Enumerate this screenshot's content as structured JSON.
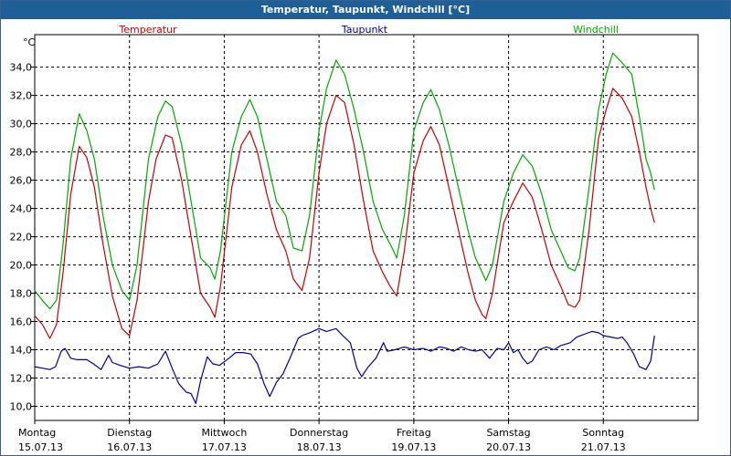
{
  "window": {
    "title": "Temperatur, Taupunkt, Windchill [°C]"
  },
  "chart_data": {
    "type": "line",
    "title": "Temperatur, Taupunkt, Windchill [°C]",
    "ylabel": "°C",
    "ylim": [
      9.0,
      36.3
    ],
    "xlim": [
      0,
      7
    ],
    "yticks": [
      10,
      12,
      14,
      16,
      18,
      20,
      22,
      24,
      26,
      28,
      30,
      32,
      34
    ],
    "ytick_labels": [
      "10,0",
      "12,0",
      "14,0",
      "16,0",
      "18,0",
      "20,0",
      "22,0",
      "24,0",
      "26,0",
      "28,0",
      "30,0",
      "32,0",
      "34,0"
    ],
    "x_days": [
      {
        "day": "Montag",
        "date": "15.07.13"
      },
      {
        "day": "Dienstag",
        "date": "16.07.13"
      },
      {
        "day": "Mittwoch",
        "date": "17.07.13"
      },
      {
        "day": "Donnerstag",
        "date": "18.07.13"
      },
      {
        "day": "Freitag",
        "date": "19.07.13"
      },
      {
        "day": "Samstag",
        "date": "20.07.13"
      },
      {
        "day": "Sonntag",
        "date": "21.07.13"
      }
    ],
    "grid": true,
    "series": [
      {
        "name": "Temperatur",
        "color": "#cc0000",
        "points": [
          [
            0.0,
            16.4
          ],
          [
            0.08,
            15.8
          ],
          [
            0.16,
            14.8
          ],
          [
            0.23,
            15.8
          ],
          [
            0.3,
            19.5
          ],
          [
            0.38,
            25.0
          ],
          [
            0.47,
            28.4
          ],
          [
            0.55,
            27.6
          ],
          [
            0.63,
            25.5
          ],
          [
            0.72,
            21.5
          ],
          [
            0.82,
            17.8
          ],
          [
            0.92,
            15.5
          ],
          [
            1.0,
            15.0
          ],
          [
            1.08,
            17.5
          ],
          [
            1.2,
            24.5
          ],
          [
            1.28,
            27.5
          ],
          [
            1.38,
            29.2
          ],
          [
            1.45,
            29.0
          ],
          [
            1.55,
            26.0
          ],
          [
            1.65,
            22.0
          ],
          [
            1.75,
            18.0
          ],
          [
            1.85,
            17.0
          ],
          [
            1.9,
            16.3
          ],
          [
            1.96,
            18.5
          ],
          [
            2.08,
            25.5
          ],
          [
            2.18,
            28.5
          ],
          [
            2.27,
            29.5
          ],
          [
            2.35,
            28.0
          ],
          [
            2.45,
            25.0
          ],
          [
            2.55,
            22.5
          ],
          [
            2.65,
            21.0
          ],
          [
            2.73,
            19.0
          ],
          [
            2.82,
            18.2
          ],
          [
            2.9,
            20.5
          ],
          [
            3.0,
            26.5
          ],
          [
            3.08,
            30.0
          ],
          [
            3.18,
            32.0
          ],
          [
            3.27,
            31.5
          ],
          [
            3.37,
            28.5
          ],
          [
            3.47,
            24.5
          ],
          [
            3.57,
            21.0
          ],
          [
            3.67,
            19.5
          ],
          [
            3.75,
            18.5
          ],
          [
            3.82,
            17.8
          ],
          [
            3.9,
            21.0
          ],
          [
            4.0,
            26.5
          ],
          [
            4.1,
            28.8
          ],
          [
            4.18,
            29.8
          ],
          [
            4.27,
            28.5
          ],
          [
            4.37,
            25.5
          ],
          [
            4.47,
            22.5
          ],
          [
            4.57,
            19.5
          ],
          [
            4.65,
            17.5
          ],
          [
            4.72,
            16.5
          ],
          [
            4.76,
            16.2
          ],
          [
            4.83,
            18.0
          ],
          [
            4.95,
            23.0
          ],
          [
            5.05,
            24.5
          ],
          [
            5.15,
            25.8
          ],
          [
            5.25,
            24.8
          ],
          [
            5.35,
            22.5
          ],
          [
            5.45,
            20.0
          ],
          [
            5.55,
            18.5
          ],
          [
            5.63,
            17.2
          ],
          [
            5.7,
            17.0
          ],
          [
            5.75,
            17.5
          ],
          [
            5.85,
            22.5
          ],
          [
            5.95,
            29.0
          ],
          [
            6.03,
            31.0
          ],
          [
            6.1,
            32.5
          ],
          [
            6.2,
            31.8
          ],
          [
            6.3,
            30.5
          ],
          [
            6.38,
            28.0
          ],
          [
            6.45,
            25.5
          ],
          [
            6.5,
            24.0
          ],
          [
            6.54,
            23.0
          ]
        ]
      },
      {
        "name": "Taupunkt",
        "color": "#000099",
        "points": [
          [
            0.0,
            12.8
          ],
          [
            0.08,
            12.7
          ],
          [
            0.16,
            12.6
          ],
          [
            0.22,
            12.8
          ],
          [
            0.28,
            13.9
          ],
          [
            0.32,
            14.1
          ],
          [
            0.38,
            13.4
          ],
          [
            0.45,
            13.3
          ],
          [
            0.55,
            13.3
          ],
          [
            0.62,
            13.0
          ],
          [
            0.7,
            12.6
          ],
          [
            0.78,
            13.6
          ],
          [
            0.82,
            13.1
          ],
          [
            0.9,
            12.9
          ],
          [
            1.0,
            12.7
          ],
          [
            1.1,
            12.8
          ],
          [
            1.2,
            12.7
          ],
          [
            1.3,
            13.0
          ],
          [
            1.38,
            13.9
          ],
          [
            1.45,
            12.7
          ],
          [
            1.52,
            11.6
          ],
          [
            1.6,
            11.0
          ],
          [
            1.65,
            10.9
          ],
          [
            1.7,
            10.2
          ],
          [
            1.75,
            11.8
          ],
          [
            1.82,
            13.5
          ],
          [
            1.88,
            13.0
          ],
          [
            1.95,
            12.9
          ],
          [
            2.05,
            13.4
          ],
          [
            2.12,
            13.8
          ],
          [
            2.2,
            13.8
          ],
          [
            2.28,
            13.7
          ],
          [
            2.35,
            13.0
          ],
          [
            2.42,
            11.6
          ],
          [
            2.48,
            10.7
          ],
          [
            2.55,
            11.7
          ],
          [
            2.62,
            12.3
          ],
          [
            2.7,
            13.5
          ],
          [
            2.78,
            14.8
          ],
          [
            2.82,
            15.0
          ],
          [
            2.9,
            15.2
          ],
          [
            3.0,
            15.5
          ],
          [
            3.08,
            15.3
          ],
          [
            3.18,
            15.5
          ],
          [
            3.25,
            15.0
          ],
          [
            3.33,
            14.5
          ],
          [
            3.4,
            12.7
          ],
          [
            3.45,
            12.1
          ],
          [
            3.52,
            12.8
          ],
          [
            3.6,
            13.4
          ],
          [
            3.68,
            14.5
          ],
          [
            3.72,
            13.9
          ],
          [
            3.8,
            14.0
          ],
          [
            3.9,
            14.2
          ],
          [
            4.0,
            14.0
          ],
          [
            4.1,
            14.1
          ],
          [
            4.18,
            13.9
          ],
          [
            4.27,
            14.2
          ],
          [
            4.35,
            14.1
          ],
          [
            4.42,
            13.9
          ],
          [
            4.5,
            14.2
          ],
          [
            4.58,
            14.0
          ],
          [
            4.65,
            13.9
          ],
          [
            4.72,
            14.0
          ],
          [
            4.8,
            13.4
          ],
          [
            4.88,
            14.1
          ],
          [
            4.95,
            14.0
          ],
          [
            5.0,
            14.5
          ],
          [
            5.05,
            13.8
          ],
          [
            5.1,
            14.0
          ],
          [
            5.15,
            13.4
          ],
          [
            5.2,
            13.0
          ],
          [
            5.25,
            13.2
          ],
          [
            5.32,
            14.0
          ],
          [
            5.4,
            14.2
          ],
          [
            5.48,
            14.0
          ],
          [
            5.55,
            14.3
          ],
          [
            5.65,
            14.5
          ],
          [
            5.72,
            14.9
          ],
          [
            5.8,
            15.1
          ],
          [
            5.88,
            15.3
          ],
          [
            5.95,
            15.2
          ],
          [
            6.0,
            15.0
          ],
          [
            6.08,
            14.9
          ],
          [
            6.15,
            14.8
          ],
          [
            6.2,
            14.9
          ],
          [
            6.25,
            14.5
          ],
          [
            6.32,
            13.7
          ],
          [
            6.38,
            12.8
          ],
          [
            6.45,
            12.6
          ],
          [
            6.5,
            13.2
          ],
          [
            6.54,
            15.0
          ]
        ]
      },
      {
        "name": "Windchill",
        "color": "#00aa00",
        "points": [
          [
            0.0,
            18.2
          ],
          [
            0.08,
            17.5
          ],
          [
            0.16,
            16.9
          ],
          [
            0.23,
            17.5
          ],
          [
            0.3,
            21.5
          ],
          [
            0.38,
            27.5
          ],
          [
            0.47,
            30.7
          ],
          [
            0.55,
            29.5
          ],
          [
            0.63,
            27.5
          ],
          [
            0.72,
            23.5
          ],
          [
            0.82,
            20.0
          ],
          [
            0.92,
            18.2
          ],
          [
            1.0,
            17.5
          ],
          [
            1.08,
            20.0
          ],
          [
            1.2,
            27.5
          ],
          [
            1.3,
            30.5
          ],
          [
            1.38,
            31.6
          ],
          [
            1.45,
            31.2
          ],
          [
            1.55,
            28.5
          ],
          [
            1.65,
            24.5
          ],
          [
            1.75,
            20.5
          ],
          [
            1.85,
            19.8
          ],
          [
            1.9,
            19.0
          ],
          [
            1.96,
            21.0
          ],
          [
            2.08,
            28.0
          ],
          [
            2.18,
            30.5
          ],
          [
            2.27,
            31.7
          ],
          [
            2.35,
            30.5
          ],
          [
            2.45,
            27.5
          ],
          [
            2.55,
            24.5
          ],
          [
            2.65,
            23.5
          ],
          [
            2.73,
            21.2
          ],
          [
            2.82,
            21.0
          ],
          [
            2.9,
            23.5
          ],
          [
            3.0,
            29.5
          ],
          [
            3.08,
            32.5
          ],
          [
            3.18,
            34.5
          ],
          [
            3.27,
            33.5
          ],
          [
            3.37,
            31.0
          ],
          [
            3.47,
            28.0
          ],
          [
            3.57,
            24.5
          ],
          [
            3.67,
            22.5
          ],
          [
            3.75,
            21.5
          ],
          [
            3.82,
            20.5
          ],
          [
            3.9,
            23.5
          ],
          [
            4.0,
            29.5
          ],
          [
            4.1,
            31.5
          ],
          [
            4.18,
            32.4
          ],
          [
            4.27,
            31.0
          ],
          [
            4.37,
            28.5
          ],
          [
            4.47,
            25.5
          ],
          [
            4.57,
            22.5
          ],
          [
            4.65,
            20.5
          ],
          [
            4.72,
            19.5
          ],
          [
            4.76,
            18.9
          ],
          [
            4.83,
            20.0
          ],
          [
            4.95,
            24.5
          ],
          [
            5.05,
            26.5
          ],
          [
            5.15,
            27.8
          ],
          [
            5.25,
            27.0
          ],
          [
            5.35,
            25.0
          ],
          [
            5.45,
            22.5
          ],
          [
            5.55,
            21.0
          ],
          [
            5.63,
            19.8
          ],
          [
            5.7,
            19.6
          ],
          [
            5.75,
            20.5
          ],
          [
            5.85,
            25.5
          ],
          [
            5.95,
            31.0
          ],
          [
            6.03,
            33.5
          ],
          [
            6.1,
            35.0
          ],
          [
            6.2,
            34.3
          ],
          [
            6.3,
            33.5
          ],
          [
            6.38,
            30.5
          ],
          [
            6.45,
            27.5
          ],
          [
            6.5,
            26.5
          ],
          [
            6.54,
            25.3
          ]
        ]
      }
    ]
  }
}
